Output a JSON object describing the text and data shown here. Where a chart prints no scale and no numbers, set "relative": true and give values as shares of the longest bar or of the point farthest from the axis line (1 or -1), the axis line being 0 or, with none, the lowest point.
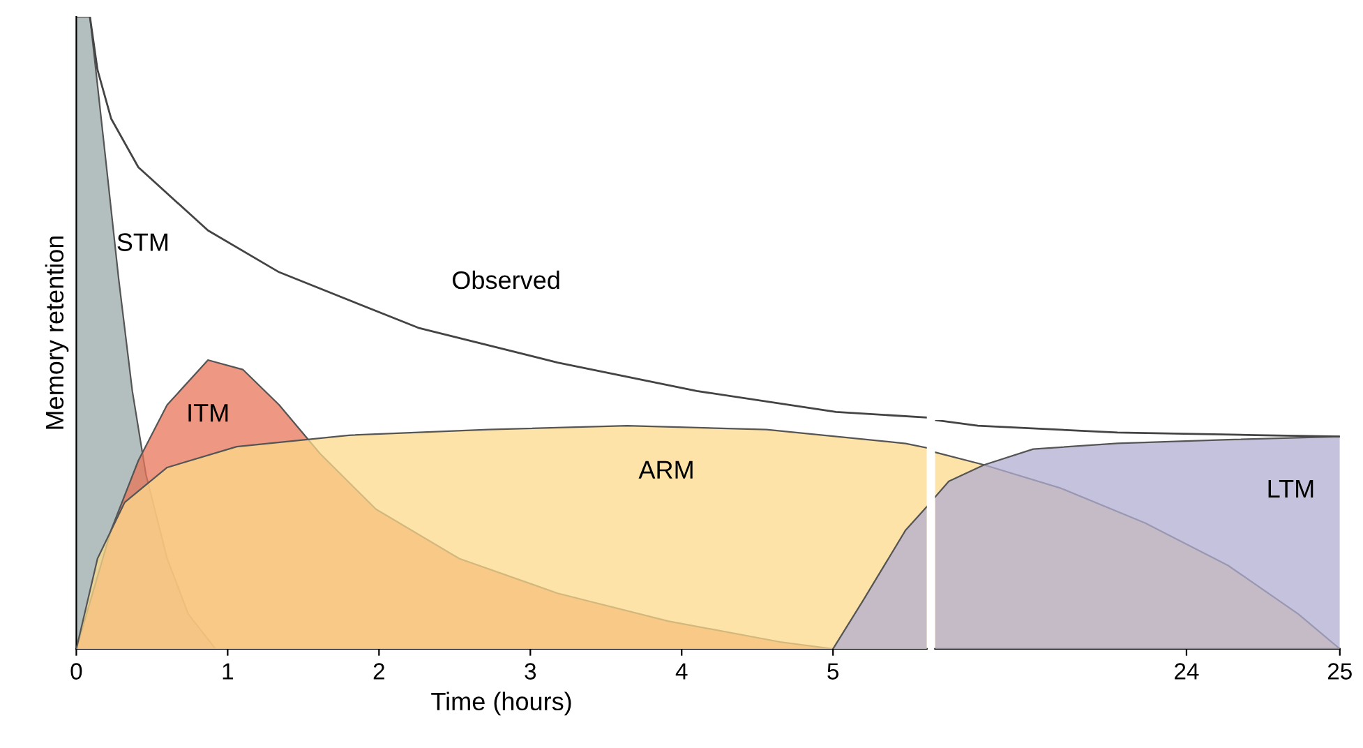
{
  "chart_data": [
    {
      "type": "area",
      "relative": true,
      "xlabel": "Time (hours)",
      "ylabel": "Memory retention",
      "xlim": [
        0,
        5.62
      ],
      "xticks": [
        0,
        1,
        2,
        3,
        4,
        5
      ],
      "tick_labels": "x",
      "grid": false,
      "legend": false,
      "series": [
        {
          "name": "STM",
          "color": "#9aa8aa",
          "x": [
            0,
            0.09,
            0.18,
            0.28,
            0.37,
            0.46,
            0.6,
            0.74,
            0.92
          ],
          "values": [
            1,
            1,
            0.805,
            0.585,
            0.408,
            0.276,
            0.143,
            0.055,
            0
          ]
        },
        {
          "name": "ITM",
          "color": "#e8765a",
          "x": [
            0,
            0.23,
            0.41,
            0.6,
            0.87,
            1.1,
            1.34,
            1.61,
            1.98,
            2.53,
            3.18,
            3.91,
            4.65,
            5
          ],
          "values": [
            0,
            0.188,
            0.298,
            0.386,
            0.457,
            0.442,
            0.386,
            0.309,
            0.221,
            0.143,
            0.088,
            0.044,
            0.011,
            0
          ]
        },
        {
          "name": "ARM",
          "color": "#fcd98a",
          "x": [
            0,
            0.14,
            0.32,
            0.6,
            1.06,
            1.8,
            2.72,
            3.64,
            4.56,
            5.48,
            5.62
          ],
          "values": [
            0,
            0.143,
            0.232,
            0.287,
            0.32,
            0.338,
            0.347,
            0.353,
            0.347,
            0.325,
            0.318
          ]
        },
        {
          "color": "#b0aed0",
          "x": [
            5,
            5.2,
            5.48,
            5.62
          ],
          "values": [
            0,
            0.077,
            0.188,
            0.225
          ]
        },
        {
          "name": "Observed",
          "type": "line",
          "color": "#444444",
          "x": [
            0.09,
            0.14,
            0.23,
            0.41,
            0.87,
            1.34,
            2.26,
            3.18,
            4.1,
            5.02,
            5.62
          ],
          "values": [
            1,
            0.916,
            0.839,
            0.762,
            0.662,
            0.596,
            0.508,
            0.453,
            0.408,
            0.375,
            0.366
          ]
        }
      ]
    },
    {
      "type": "area",
      "relative": true,
      "xlim": [
        22.36,
        25
      ],
      "xticks": [
        24,
        25
      ],
      "tick_labels": "x",
      "grid": false,
      "legend": false,
      "series": [
        {
          "color": "#fcd98a",
          "x": [
            22.36,
            22.68,
            23.18,
            23.73,
            24.27,
            24.73,
            25
          ],
          "values": [
            0.859,
            0.804,
            0.702,
            0.55,
            0.365,
            0.152,
            0
          ]
        },
        {
          "name": "LTM",
          "color": "#b0aed0",
          "x": [
            22.36,
            22.45,
            22.68,
            23.0,
            23.55,
            24.27,
            25
          ],
          "values": [
            0.663,
            0.732,
            0.804,
            0.873,
            0.898,
            0.914,
            0.928
          ]
        },
        {
          "type": "line",
          "color": "#444444",
          "x": [
            22.36,
            22.64,
            23.55,
            24.45,
            25
          ],
          "values": [
            1,
            0.975,
            0.945,
            0.934,
            0.928
          ]
        }
      ]
    }
  ]
}
